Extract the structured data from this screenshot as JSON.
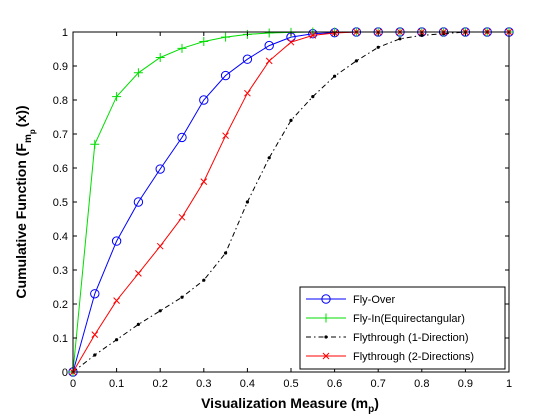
{
  "chart_data": {
    "type": "line",
    "xlabel": {
      "main": "Visualization Measure (m",
      "sub": "p",
      "tail": ")"
    },
    "ylabel": {
      "main": "Cumulative Function (F",
      "sub1": "m",
      "sub2": "p",
      "tail": "(x))"
    },
    "xlim": [
      0,
      1
    ],
    "ylim": [
      0,
      1
    ],
    "xticks": [
      0,
      0.1,
      0.2,
      0.3,
      0.4,
      0.5,
      0.6,
      0.7,
      0.8,
      0.9,
      1
    ],
    "yticks": [
      0,
      0.1,
      0.2,
      0.3,
      0.4,
      0.5,
      0.6,
      0.7,
      0.8,
      0.9,
      1
    ],
    "xtick_labels": [
      "0",
      "0.1",
      "0.2",
      "0.3",
      "0.4",
      "0.5",
      "0.6",
      "0.7",
      "0.8",
      "0.9",
      "1"
    ],
    "ytick_labels": [
      "0",
      "0.1",
      "0.2",
      "0.3",
      "0.4",
      "0.5",
      "0.6",
      "0.7",
      "0.8",
      "0.9",
      "1"
    ],
    "grid": false,
    "legend_position": "bottom-right",
    "x": [
      0,
      0.05,
      0.1,
      0.15,
      0.2,
      0.25,
      0.3,
      0.35,
      0.4,
      0.45,
      0.5,
      0.55,
      0.6,
      0.65,
      0.7,
      0.75,
      0.8,
      0.85,
      0.9,
      0.95,
      1
    ],
    "series": [
      {
        "name": "Fly-Over",
        "color": "#0000ff",
        "line": "solid",
        "marker": "circle",
        "values": [
          0,
          0.23,
          0.385,
          0.5,
          0.597,
          0.69,
          0.8,
          0.872,
          0.92,
          0.96,
          0.985,
          0.995,
          0.998,
          1,
          1,
          1,
          1,
          1,
          1,
          1,
          1
        ]
      },
      {
        "name": "Fly-In(Equirectangular)",
        "color": "#00dd00",
        "line": "solid",
        "marker": "plus",
        "values": [
          0,
          0.67,
          0.81,
          0.88,
          0.925,
          0.952,
          0.972,
          0.985,
          0.993,
          0.997,
          0.999,
          1,
          1,
          1,
          1,
          1,
          1,
          1,
          1,
          1,
          1
        ]
      },
      {
        "name": "Flythrough (1-Direction)",
        "color": "#000000",
        "line": "dashdot",
        "marker": "dot",
        "values": [
          0,
          0.05,
          0.095,
          0.14,
          0.18,
          0.22,
          0.27,
          0.35,
          0.5,
          0.63,
          0.74,
          0.81,
          0.87,
          0.915,
          0.955,
          0.98,
          0.99,
          0.995,
          1,
          1,
          1
        ]
      },
      {
        "name": "Flythrough (2-Directions)",
        "color": "#ff0000",
        "line": "solid",
        "marker": "x",
        "values": [
          0,
          0.11,
          0.21,
          0.29,
          0.37,
          0.455,
          0.56,
          0.695,
          0.82,
          0.915,
          0.97,
          0.99,
          0.997,
          1,
          1,
          1,
          1,
          1,
          1,
          1,
          1
        ]
      }
    ]
  }
}
